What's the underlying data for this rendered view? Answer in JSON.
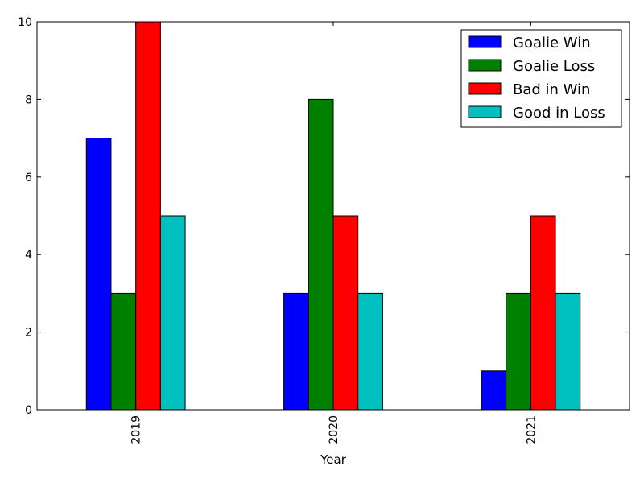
{
  "chart_data": {
    "type": "bar",
    "title": "",
    "xlabel": "Year",
    "ylabel": "",
    "categories": [
      "2019",
      "2020",
      "2021"
    ],
    "series": [
      {
        "name": "Goalie Win",
        "color": "#0000ff",
        "values": [
          7,
          3,
          1
        ]
      },
      {
        "name": "Goalie Loss",
        "color": "#008000",
        "values": [
          3,
          8,
          3
        ]
      },
      {
        "name": "Bad in Win",
        "color": "#ff0000",
        "values": [
          10,
          5,
          5
        ]
      },
      {
        "name": "Good in Loss",
        "color": "#00bfbf",
        "values": [
          5,
          3,
          3
        ]
      }
    ],
    "ylim": [
      0,
      10
    ],
    "yticks": [
      "0",
      "2",
      "4",
      "6",
      "8",
      "10"
    ],
    "grid": false,
    "legend_position": "top-right",
    "xtick_rotation": "vertical"
  }
}
